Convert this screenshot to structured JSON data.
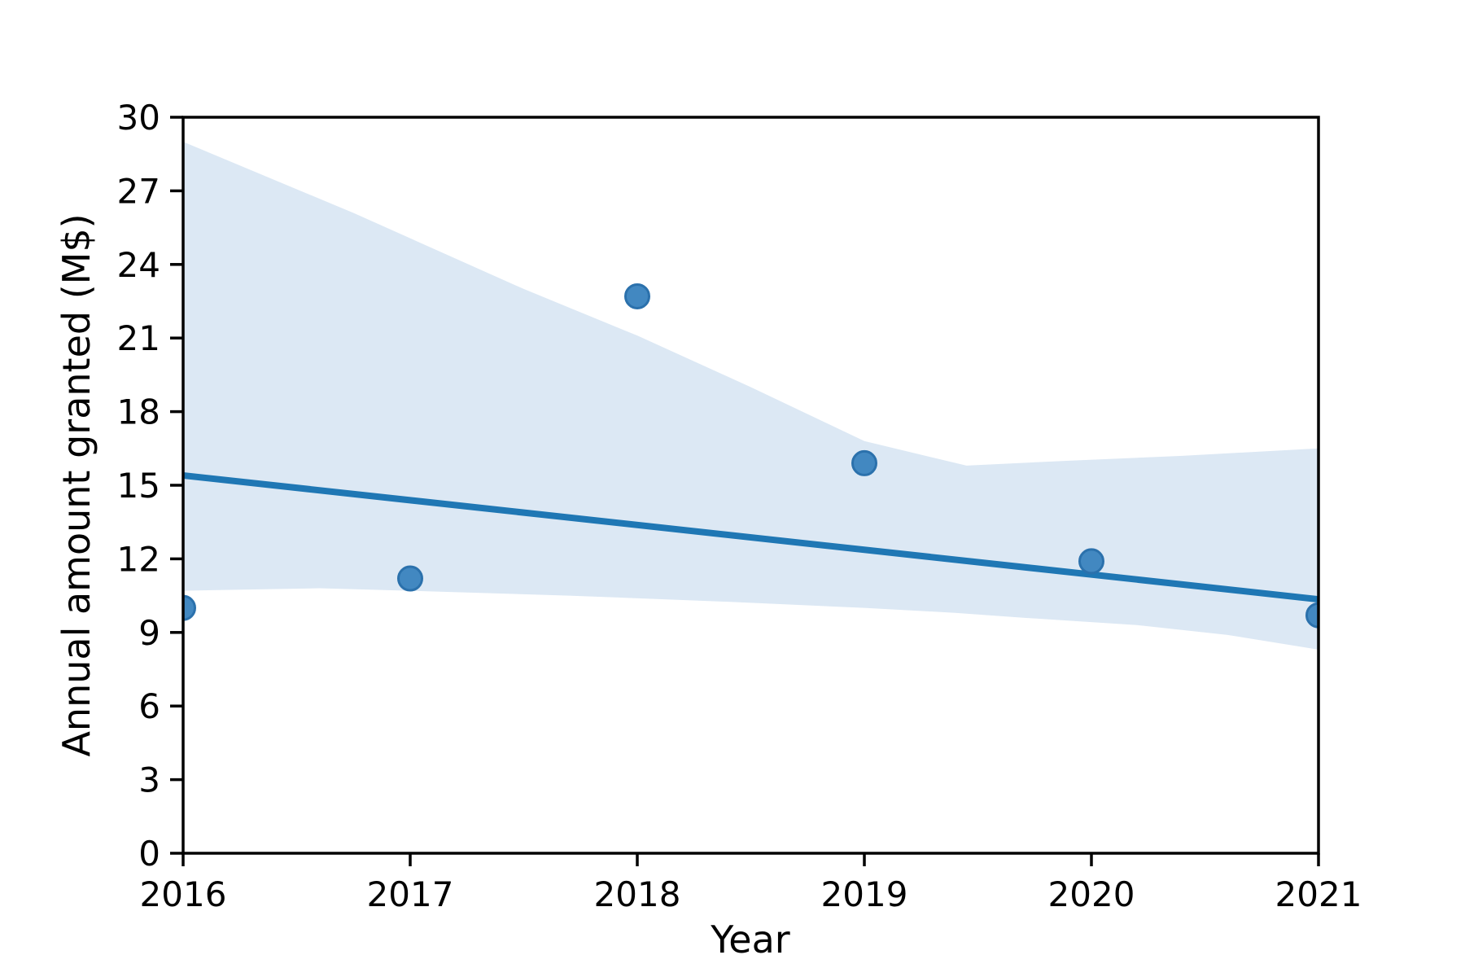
{
  "chart_data": {
    "type": "scatter",
    "title": "",
    "xlabel": "Year",
    "ylabel": "Annual amount granted (M$)",
    "x": [
      2016,
      2017,
      2018,
      2019,
      2020,
      2021
    ],
    "y": [
      10.0,
      11.2,
      22.7,
      15.9,
      11.9,
      9.7
    ],
    "series_name": "Annual amount granted",
    "regression_line": {
      "x": [
        2016,
        2021
      ],
      "y": [
        15.4,
        10.35
      ]
    },
    "confidence_band": {
      "top": [
        [
          2016.0,
          29.0
        ],
        [
          2016.75,
          26.1
        ],
        [
          2017.5,
          23.0
        ],
        [
          2018.0,
          21.1
        ],
        [
          2018.5,
          19.0
        ],
        [
          2019.0,
          16.8
        ],
        [
          2019.45,
          15.8
        ],
        [
          2019.9,
          16.0
        ],
        [
          2020.4,
          16.2
        ],
        [
          2021.0,
          16.5
        ]
      ],
      "bottom": [
        [
          2016.0,
          10.7
        ],
        [
          2016.6,
          10.8
        ],
        [
          2017.0,
          10.7
        ],
        [
          2017.7,
          10.5
        ],
        [
          2018.4,
          10.25
        ],
        [
          2019.0,
          10.0
        ],
        [
          2019.4,
          9.8
        ],
        [
          2019.7,
          9.6
        ],
        [
          2020.2,
          9.3
        ],
        [
          2020.6,
          8.9
        ],
        [
          2021.0,
          8.3
        ]
      ]
    },
    "xlim": [
      2016,
      2021
    ],
    "ylim": [
      0,
      30
    ],
    "xticks": [
      2016,
      2017,
      2018,
      2019,
      2020,
      2021
    ],
    "yticks": [
      0,
      3,
      6,
      9,
      12,
      15,
      18,
      21,
      24,
      27,
      30
    ],
    "grid": false,
    "legend": null,
    "colors": {
      "point_fill": "#4288c1",
      "point_edge": "#2b71ac",
      "regression_line": "#1f77b4",
      "band": "#dce8f4",
      "axis": "#000000",
      "background": "#ffffff"
    }
  }
}
